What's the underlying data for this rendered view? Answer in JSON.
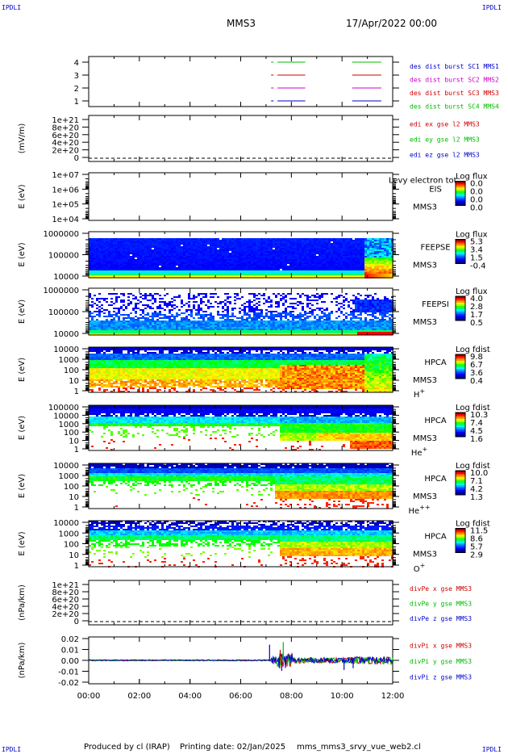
{
  "corners": {
    "tl": "IPDLI",
    "tr": "IPDLI",
    "bl": "IPDLI",
    "br": "IPDLI"
  },
  "header": {
    "mission": "MMS3",
    "date": "17/Apr/2022 00:00"
  },
  "footer": {
    "producer": "Produced by cl (IRAP)",
    "printing": "Printing date: 02/Jan/2025",
    "file": "mms_mms3_srvy_vue_web2.cl"
  },
  "colors": {
    "blue": "#0000cc",
    "magenta": "#cc00cc",
    "red": "#cc0000",
    "green": "#00bb00",
    "colorbar": [
      "#800000",
      "#ff0000",
      "#ff8000",
      "#ffff00",
      "#00ff00",
      "#00ffff",
      "#0080ff",
      "#0000ff",
      "#000080"
    ]
  },
  "chart_data": {
    "type": "stacked-timeseries",
    "x_tick_labels": [
      "00:00",
      "02:00",
      "04:00",
      "06:00",
      "08:00",
      "10:00",
      "12:00"
    ],
    "panels": [
      {
        "id": "burst",
        "type": "line",
        "ylabel": "",
        "ytick_labels": [
          "4",
          "3",
          "2",
          "1"
        ],
        "ylim": [
          0.5,
          4.5
        ],
        "legend": [
          {
            "text": "des dist burst SC1 MMS1",
            "color": "#0000cc"
          },
          {
            "text": "des dist burst SC2 MMS2",
            "color": "#cc00cc"
          },
          {
            "text": "des dist burst SC3 MMS3",
            "color": "#cc0000"
          },
          {
            "text": "des dist burst SC4 MMS4",
            "color": "#00bb00"
          }
        ],
        "series": [
          {
            "color": "#0000cc",
            "y": 1,
            "intervals": [
              [
                7.2,
                7.3
              ],
              [
                7.45,
                8.55
              ],
              [
                10.4,
                11.55
              ]
            ]
          },
          {
            "color": "#cc00cc",
            "y": 2,
            "intervals": [
              [
                7.2,
                7.3
              ],
              [
                7.45,
                8.55
              ],
              [
                10.4,
                11.55
              ]
            ]
          },
          {
            "color": "#cc0000",
            "y": 3,
            "intervals": [
              [
                7.2,
                7.3
              ],
              [
                7.45,
                8.55
              ],
              [
                10.4,
                11.55
              ]
            ]
          },
          {
            "color": "#00bb00",
            "y": 4,
            "intervals": [
              [
                7.2,
                7.3
              ],
              [
                7.45,
                8.55
              ],
              [
                10.4,
                11.55
              ]
            ]
          }
        ]
      },
      {
        "id": "edi",
        "type": "line",
        "ylabel": "(mV/m)",
        "ytick_labels": [
          "1e+21",
          "8e+20",
          "6e+20",
          "4e+20",
          "2e+20",
          "0"
        ],
        "ylim": [
          -2e+19,
          1.05e+21
        ],
        "zero_dashed": true,
        "legend": [
          {
            "text": "edi ex gse l2 MMS3",
            "color": "#cc0000"
          },
          {
            "text": "edi ey gse l2 MMS3",
            "color": "#00bb00"
          },
          {
            "text": "edi ez gse l2 MMS3",
            "color": "#0000cc"
          }
        ]
      },
      {
        "id": "eis",
        "type": "heatmap",
        "ylabel": "E (eV)",
        "ytick_labels": [
          "1e+07",
          "1e+06",
          "1e+05",
          "1e+04"
        ],
        "ylim": [
          10000,
          10000000
        ],
        "ylog": true,
        "labels": [
          "EIS",
          "MMS3"
        ],
        "overlay_text": "Levy electron tot",
        "cb_title": "Log flux",
        "cb_ticks": [
          "0.0",
          "0.0",
          "0.0",
          "0.0"
        ],
        "pattern": "empty"
      },
      {
        "id": "feepse",
        "type": "heatmap",
        "ylabel": "E (eV)",
        "ytick_labels": [
          "1000000",
          "100000",
          "10000"
        ],
        "ylim": [
          10000,
          1000000
        ],
        "ylog": true,
        "labels": [
          "FEEPSE",
          "MMS3"
        ],
        "cb_title": "Log flux",
        "cb_ticks": [
          "5.3",
          "3.4",
          "1.5",
          "-0.4"
        ],
        "pattern": "feepse"
      },
      {
        "id": "feepsi",
        "type": "heatmap",
        "ylabel": "E (eV)",
        "ytick_labels": [
          "1000000",
          "100000",
          "10000"
        ],
        "ylim": [
          10000,
          1000000
        ],
        "ylog": true,
        "labels": [
          "FEEPSI",
          "MMS3"
        ],
        "cb_title": "Log flux",
        "cb_ticks": [
          "4.0",
          "2.8",
          "1.7",
          "0.5"
        ],
        "pattern": "feepsi"
      },
      {
        "id": "hpca-h",
        "type": "heatmap",
        "ylabel": "E (eV)",
        "ytick_labels": [
          "10000",
          "1000",
          "100",
          "10",
          "1"
        ],
        "ylim": [
          1,
          40000
        ],
        "ylog": true,
        "labels": [
          "HPCA",
          "MMS3"
        ],
        "species": "H",
        "charge": "+",
        "cb_title": "Log fdist",
        "cb_ticks": [
          "9.8",
          "6.7",
          "3.6",
          "0.4"
        ],
        "pattern": "hpca_h"
      },
      {
        "id": "hpca-he1",
        "type": "heatmap",
        "ylabel": "E (eV)",
        "ytick_labels": [
          "100000",
          "10000",
          "1000",
          "100",
          "10",
          "1"
        ],
        "ylim": [
          1,
          100000
        ],
        "ylog": true,
        "labels": [
          "HPCA",
          "MMS3"
        ],
        "species": "He",
        "charge": "+",
        "cb_title": "Log fdist",
        "cb_ticks": [
          "10.3",
          "7.4",
          "4.5",
          "1.6"
        ],
        "pattern": "hpca_he1"
      },
      {
        "id": "hpca-he2",
        "type": "heatmap",
        "ylabel": "E (eV)",
        "ytick_labels": [
          "10000",
          "1000",
          "100",
          "10",
          "1"
        ],
        "ylim": [
          1,
          40000
        ],
        "ylog": true,
        "labels": [
          "HPCA",
          "MMS3"
        ],
        "species": "He",
        "charge": "++",
        "cb_title": "Log fdist",
        "cb_ticks": [
          "10.0",
          "7.1",
          "4.2",
          "1.3"
        ],
        "pattern": "hpca_he2"
      },
      {
        "id": "hpca-o",
        "type": "heatmap",
        "ylabel": "E (eV)",
        "ytick_labels": [
          "10000",
          "1000",
          "100",
          "10",
          "1"
        ],
        "ylim": [
          1,
          40000
        ],
        "ylog": true,
        "labels": [
          "HPCA",
          "MMS3"
        ],
        "species": "O",
        "charge": "+",
        "cb_title": "Log fdist",
        "cb_ticks": [
          "11.5",
          "8.6",
          "5.7",
          "2.9"
        ],
        "pattern": "hpca_o"
      },
      {
        "id": "divpe",
        "type": "line",
        "ylabel": "(nPa/km)",
        "ytick_labels": [
          "1e+21",
          "8e+20",
          "6e+20",
          "4e+20",
          "2e+20",
          "0"
        ],
        "ylim": [
          -2e+19,
          1.05e+21
        ],
        "zero_dashed": true,
        "legend": [
          {
            "text": "divPe x gse MMS3",
            "color": "#cc0000"
          },
          {
            "text": "divPe y gse MMS3",
            "color": "#00bb00"
          },
          {
            "text": "divPe z gse MMS3",
            "color": "#0000cc"
          }
        ]
      },
      {
        "id": "divpi",
        "type": "line",
        "ylabel": "(nPa/km)",
        "ytick_labels": [
          "0.02",
          "0.01",
          "0.00",
          "-0.01",
          "-0.02"
        ],
        "ylim": [
          -0.025,
          0.025
        ],
        "legend": [
          {
            "text": "divPi x gse MMS3",
            "color": "#cc0000"
          },
          {
            "text": "divPi y gse MMS3",
            "color": "#00bb00"
          },
          {
            "text": "divPi z gse MMS3",
            "color": "#0000cc"
          }
        ],
        "pattern": "divpi"
      }
    ]
  }
}
